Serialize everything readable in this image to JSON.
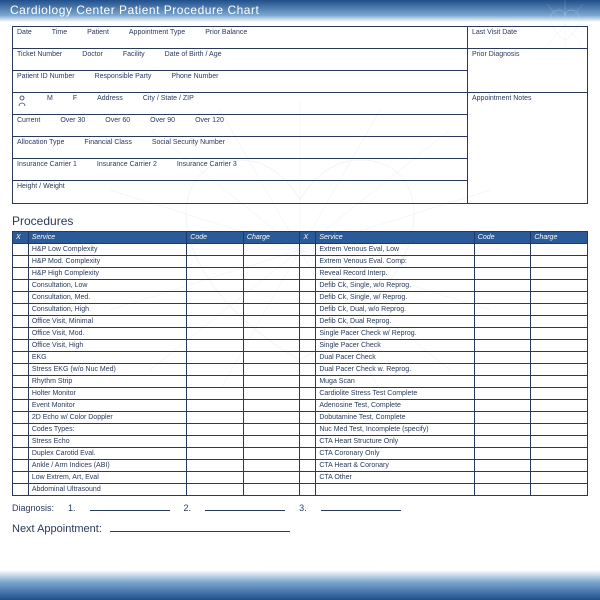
{
  "header": {
    "title": "Cardiology Center Patient Procedure Chart"
  },
  "info": {
    "row1": [
      "Date",
      "Time",
      "Patient",
      "Appointment Type",
      "Prior Balance"
    ],
    "row2": [
      "Ticket Number",
      "Doctor",
      "Facility",
      "Date of Birth / Age"
    ],
    "row3": [
      "Patient ID Number",
      "Responsible Party",
      "Phone Number"
    ],
    "row4": [
      "M",
      "F",
      "Address",
      "City / State / ZIP"
    ],
    "row5": [
      "Current",
      "Over 30",
      "Over 60",
      "Over 90",
      "Over 120"
    ],
    "row6": [
      "Allocation Type",
      "Financial Class",
      "Social Security Number"
    ],
    "row7": [
      "Insurance Carrier 1",
      "Insurance Carrier 2",
      "Insurance Carrier 3"
    ],
    "row8": [
      "Height / Weight"
    ],
    "side": [
      "Last Visit Date",
      "Prior Diagnosis",
      "Appointment Notes"
    ]
  },
  "procedures": {
    "title": "Procedures",
    "columns": [
      "X",
      "Service",
      "Code",
      "Charge",
      "X",
      "Service",
      "Code",
      "Charge"
    ],
    "left": [
      "H&P Low Complexity",
      "H&P Mod. Complexity",
      "H&P High Complexity",
      "Consultation, Low",
      "Consultation, Med.",
      "Consultation, High",
      "Office Visit, Minimal",
      "Office Visit, Mod.",
      "Office Visit, High",
      "EKG",
      "Stress EKG (w/o Nuc Med)",
      "Rhythm Strip",
      "Holter Monitor",
      "Event Monitor",
      "2D Echo w/ Color Doppler",
      "Codes Types:",
      "Stress Echo",
      "Duplex Carotid Eval.",
      "Ankle / Arm Indices (ABI)",
      "Low Extrem, Art, Eval",
      "Abdominal Ultrasound"
    ],
    "right": [
      "Extrem Venous Eval, Low",
      "Extrem Venous Eval. Comp:",
      "Reveal Record Interp.",
      "Defib Ck, Single, w/o Reprog.",
      "Defib Ck, Single, w/ Reprog.",
      "Defib Ck, Dual, w/o Reprog.",
      "Defib Ck, Dual Reprog.",
      "Single Pacer Check w/ Reprog.",
      "Single Pacer Check",
      "Dual Pacer Check",
      "Dual Pacer Check w. Reprog.",
      "Muga Scan",
      "Cardiolite Stress Test Complete",
      "Adenosine Test, Complete",
      "Dobutamine Test, Complete",
      "Nuc Med Test, Incomplete (specify)",
      "CTA Heart Structure Only",
      "CTA Coronary Only",
      "CTA Heart & Coronary",
      "CTA Other",
      ""
    ]
  },
  "diagnosis": {
    "label": "Diagnosis:",
    "n1": "1.",
    "n2": "2.",
    "n3": "3."
  },
  "next": {
    "label": "Next Appointment:"
  },
  "colors": {
    "header_bg_from": "#1f4e8a",
    "header_bg_to": "#7ba7d0",
    "table_header_bg": "#2a5a97",
    "border": "#2a3a5a",
    "text": "#2a3a5a"
  }
}
